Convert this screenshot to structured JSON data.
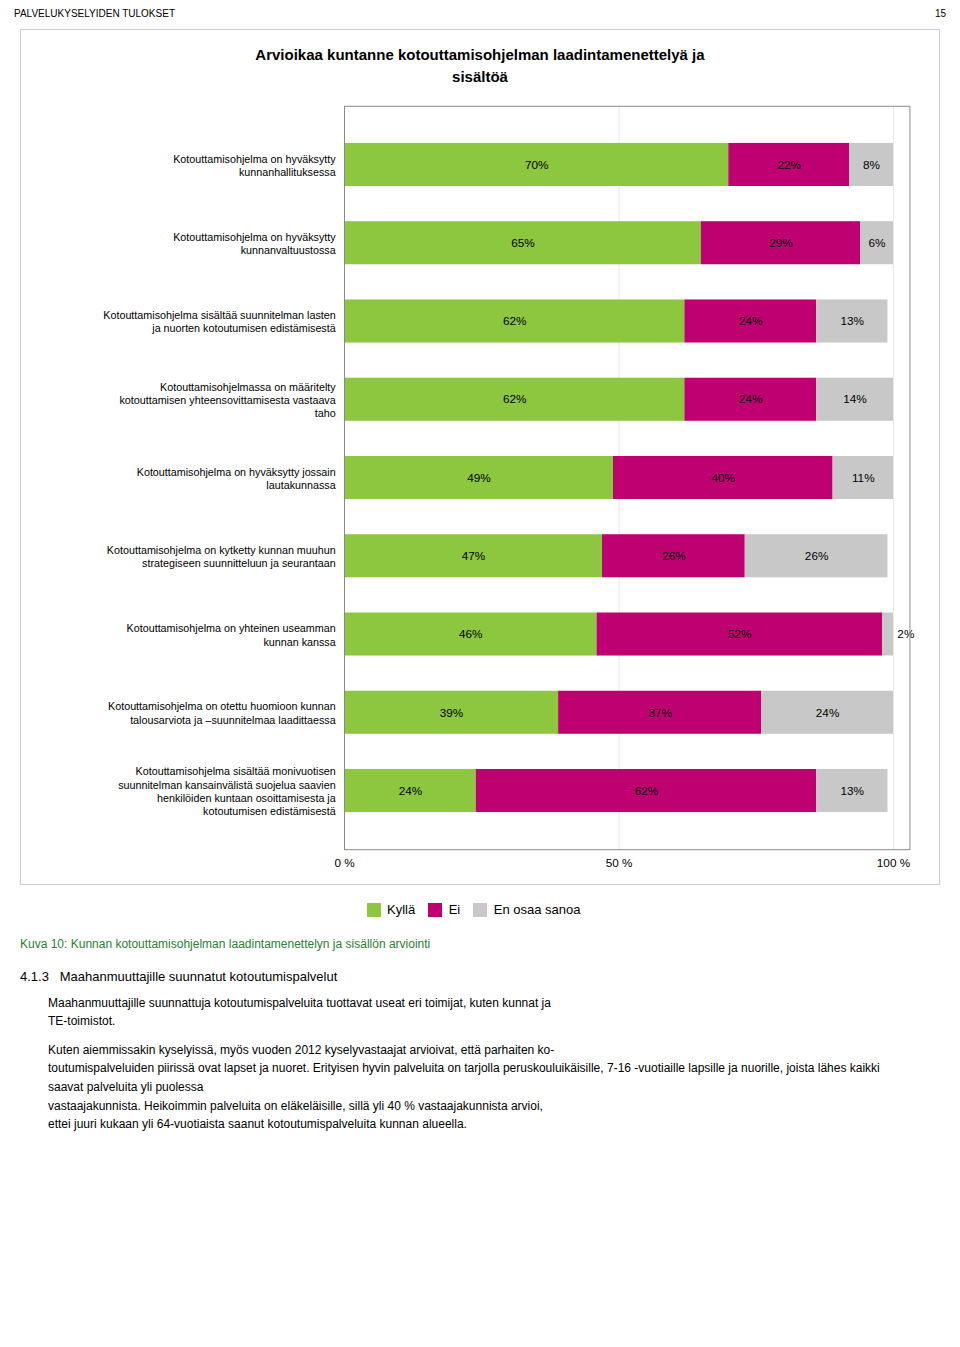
{
  "chart_data": {
    "type": "bar",
    "orientation": "horizontal",
    "stacked": true,
    "data_labels": true,
    "grid": true,
    "title": "Arvioikaa kuntanne kotouttamisohjelman laadintamenettelyä ja\nsisältöä",
    "categories": [
      "Kotouttamisohjelma on hyväksytty\nkunnanhallituksessa",
      "Kotouttamisohjelma on hyväksytty\nkunnanvaltuustossa",
      "Kotouttamisohjelma sisältää suunnitelman lasten\nja nuorten kotoutumisen edistämisestä",
      "Kotouttamisohjelmassa on määritelty\nkotouttamisen yhteensovittamisesta vastaava\ntaho",
      "Kotouttamisohjelma on hyväksytty jossain\nlautakunnassa",
      "Kotouttamisohjelma on kytketty kunnan muuhun\nstrategiseen suunnitteluun ja seurantaan",
      "Kotouttamisohjelma on yhteinen useamman\nkunnan kanssa",
      "Kotouttamisohjelma on otettu huomioon kunnan\ntalousarviota ja –suunnitelmaa laadittaessa",
      "Kotouttamisohjelma sisältää monivuotisen\nsuunnitelman kansainvälistä suojelua saavien\nhenkilöiden kuntaan osoittamisesta ja\nkotoutumisen edistämisestä"
    ],
    "series": [
      {
        "name": "Kyllä",
        "color": "#8dc63f",
        "values": [
          70,
          65,
          62,
          62,
          49,
          47,
          46,
          39,
          24
        ],
        "value_labels": [
          "70%",
          "65%",
          "62%",
          "62%",
          "49%",
          "47%",
          "46%",
          "39%",
          "24%"
        ]
      },
      {
        "name": "Ei",
        "color": "#be0071",
        "values": [
          22,
          29,
          24,
          24,
          40,
          26,
          52,
          37,
          62
        ],
        "value_labels": [
          "22%",
          "29%",
          "24%",
          "24%",
          "40%",
          "26%",
          "52%",
          "37%",
          "62%"
        ]
      },
      {
        "name": "En osaa sanoa",
        "color": "#c8c8c8",
        "values": [
          8,
          6,
          13,
          14,
          11,
          26,
          2,
          24,
          13
        ],
        "value_labels": [
          "8%",
          "6%",
          "13%",
          "14%",
          "11%",
          "26%",
          "2%",
          "24%",
          "13%"
        ]
      }
    ],
    "xlim": [
      0,
      103
    ],
    "xticks": [
      {
        "value": 0,
        "label": "0 %"
      },
      {
        "value": 50,
        "label": "50 %"
      },
      {
        "value": 100,
        "label": "100 %"
      }
    ],
    "caption": "Kuva 10: Kunnan kotouttamisohjelman laadintamenettelyn ja sisällön arviointi",
    "header": [
      "PALVELUKYSELYIDEN TULOKSET",
      "15"
    ],
    "section_title": "4.1.3   Maahanmuuttajille suunnatut kotoutumispalvelut",
    "body_text": [
      "Maahanmuuttajille suunnattuja kotoutumispalveluita tuottavat useat eri toimijat, kuten kunnat ja\nTE-toimistot.",
      "Kuten aiemmissakin kyselyissä, myös vuoden 2012 kyselyvastaajat arvioivat, että parhaiten ko-\ntoutumispalveluiden piirissä ovat lapset ja nuoret. Erityisen hyvin palveluita on tarjolla peruskouluikäisille, 7-16 -vuotiaille lapsille ja nuorille, joista lähes kaikki saavat palveluita yli puolessa\nvastaajakunnista. Heikoimmin palveluita on eläkeläisille, sillä yli 40 % vastaajakunnista arvioi,\nettei juuri kukaan yli 64-vuotiaista saanut kotoutumispalveluita kunnan alueella."
    ]
  }
}
